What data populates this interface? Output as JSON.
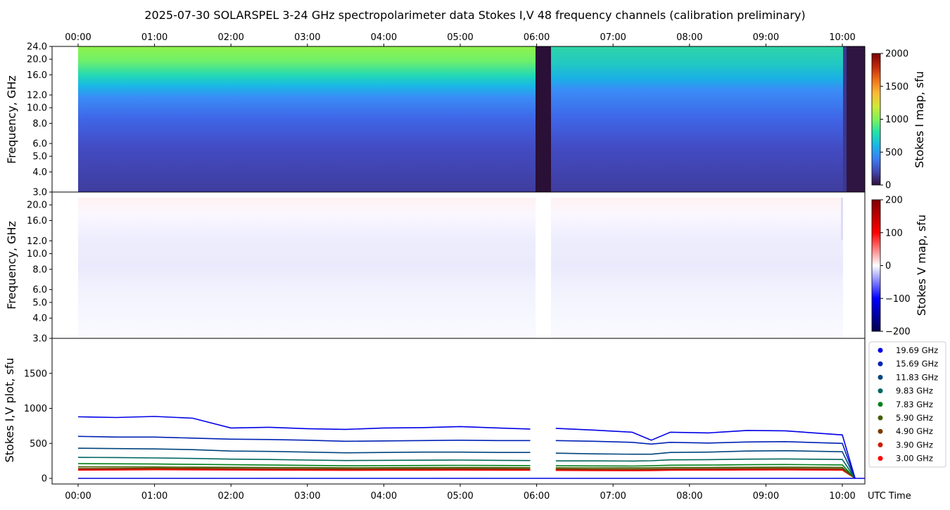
{
  "title": "2025-07-30  SOLARSPEL  3-24 GHz spectropolarimeter data   Stokes I,V   48 frequency channels   (calibration preliminary)",
  "chart_data": [
    {
      "type": "heatmap",
      "panel": "stokes-i-map",
      "ylabel": "Frequency, GHz",
      "colorbar_label": "Stokes I map, sfu",
      "colorbar_ticks": [
        "0",
        "500",
        "1000",
        "1500",
        "2000"
      ],
      "clim": [
        0,
        2000
      ],
      "y_ticks": [
        "3.0",
        "4.0",
        "5.0",
        "6.0",
        "8.0",
        "10.0",
        "12.0",
        "16.0",
        "20.0",
        "24.0"
      ],
      "y_scale": "log",
      "ylim": [
        3.0,
        24.0
      ],
      "x_ticks_top": [
        "00:00",
        "01:00",
        "02:00",
        "03:00",
        "04:00",
        "05:00",
        "06:00",
        "07:00",
        "08:00",
        "09:00",
        "10:00"
      ],
      "colormap": [
        "#30123b",
        "#4146b0",
        "#3a7ff3",
        "#1ab6e8",
        "#22e3a9",
        "#7ff35a",
        "#d1e835",
        "#fbb938",
        "#f0701b",
        "#c0280b",
        "#7a0403"
      ],
      "gaps_utc": [
        [
          "06:00",
          "06:12"
        ],
        [
          "10:07",
          "10:20"
        ]
      ]
    },
    {
      "type": "heatmap",
      "panel": "stokes-v-map",
      "ylabel": "Frequency, GHz",
      "colorbar_label": "Stokes V map, sfu",
      "colorbar_ticks": [
        "200",
        "100",
        "0",
        "−100",
        "−200"
      ],
      "clim": [
        -200,
        200
      ],
      "y_ticks": [
        "3.0",
        "4.0",
        "5.0",
        "6.0",
        "8.0",
        "10.0",
        "12.0",
        "16.0",
        "20.0"
      ],
      "y_scale": "log",
      "ylim": [
        3.0,
        24.0
      ],
      "colormap": [
        "#00004c",
        "#0000ff",
        "#ffffff",
        "#ff0000",
        "#800000"
      ]
    },
    {
      "type": "line",
      "panel": "stokes-iv-plot",
      "ylabel": "Stokes I,V plot, sfu",
      "xlabel": "UTC Time",
      "x_ticks": [
        "00:00",
        "01:00",
        "02:00",
        "03:00",
        "04:00",
        "05:00",
        "06:00",
        "07:00",
        "08:00",
        "09:00",
        "10:00"
      ],
      "y_ticks": [
        "0",
        "500",
        "1000",
        "1500"
      ],
      "ylim": [
        -80,
        2000
      ],
      "series": [
        {
          "name": "19.69 GHz",
          "color": "#0000e6",
          "values": [
            880,
            870,
            885,
            860,
            720,
            730,
            710,
            700,
            720,
            725,
            740,
            720,
            705,
            715,
            690,
            660,
            545,
            660,
            650,
            685,
            680,
            620,
            0
          ]
        },
        {
          "name": "15.69 GHz",
          "color": "#0022b3",
          "values": [
            600,
            590,
            590,
            575,
            560,
            555,
            545,
            530,
            535,
            540,
            545,
            540,
            540,
            540,
            530,
            515,
            490,
            515,
            505,
            520,
            525,
            500,
            0
          ]
        },
        {
          "name": "11.83 GHz",
          "color": "#00457f",
          "values": [
            430,
            425,
            420,
            410,
            390,
            385,
            375,
            365,
            370,
            375,
            375,
            370,
            370,
            360,
            350,
            345,
            345,
            370,
            375,
            390,
            395,
            380,
            0
          ]
        },
        {
          "name": "9.83 GHz",
          "color": "#006660",
          "values": [
            300,
            298,
            292,
            285,
            275,
            270,
            262,
            255,
            258,
            260,
            262,
            258,
            255,
            250,
            250,
            248,
            252,
            265,
            268,
            275,
            278,
            270,
            0
          ]
        },
        {
          "name": "7.83 GHz",
          "color": "#00801a",
          "values": [
            210,
            208,
            205,
            200,
            195,
            190,
            185,
            180,
            182,
            184,
            186,
            184,
            182,
            180,
            178,
            176,
            180,
            188,
            190,
            195,
            198,
            192,
            0
          ]
        },
        {
          "name": "5.90 GHz",
          "color": "#405e00",
          "values": [
            165,
            164,
            163,
            160,
            158,
            156,
            154,
            152,
            153,
            154,
            155,
            154,
            153,
            152,
            151,
            150,
            152,
            155,
            156,
            158,
            160,
            157,
            0
          ]
        },
        {
          "name": "4.90 GHz",
          "color": "#7a3a00",
          "values": [
            140,
            142,
            145,
            143,
            140,
            138,
            136,
            135,
            136,
            137,
            138,
            137,
            136,
            134,
            132,
            130,
            132,
            136,
            138,
            140,
            142,
            138,
            0
          ]
        },
        {
          "name": "3.90 GHz",
          "color": "#cc1a00",
          "values": [
            128,
            130,
            134,
            132,
            130,
            128,
            126,
            125,
            126,
            127,
            128,
            127,
            126,
            124,
            122,
            120,
            122,
            126,
            128,
            130,
            132,
            128,
            0
          ]
        },
        {
          "name": "3.00 GHz",
          "color": "#ff0000",
          "values": [
            118,
            120,
            124,
            122,
            120,
            118,
            116,
            115,
            116,
            117,
            118,
            117,
            116,
            114,
            112,
            110,
            112,
            116,
            118,
            120,
            122,
            118,
            0
          ]
        }
      ],
      "x_utc": [
        "00:00",
        "00:30",
        "01:00",
        "01:30",
        "02:00",
        "02:30",
        "03:00",
        "03:30",
        "04:00",
        "04:30",
        "05:00",
        "05:30",
        "05:55",
        "06:15",
        "06:45",
        "07:15",
        "07:30",
        "07:45",
        "08:15",
        "08:45",
        "09:15",
        "10:00",
        "10:10"
      ],
      "gap_utc": [
        "06:00",
        "06:12"
      ],
      "legend_position": "right"
    }
  ]
}
